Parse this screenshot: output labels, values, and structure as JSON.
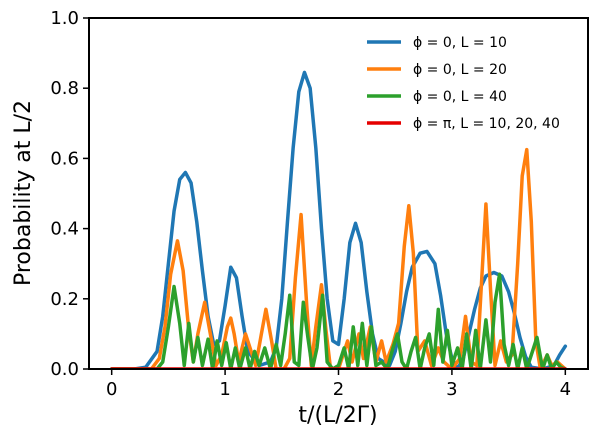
{
  "chart_data": {
    "type": "line",
    "xlabel": "t/(L/2Γ)",
    "ylabel": "Probability at L/2",
    "xlim": [
      -0.2,
      4.2
    ],
    "ylim": [
      0.0,
      1.0
    ],
    "x_ticks": [
      "0",
      "1",
      "2",
      "3",
      "4"
    ],
    "y_ticks": [
      "0.0",
      "0.2",
      "0.4",
      "0.6",
      "0.8",
      "1.0"
    ],
    "legend_position": "top-right",
    "series": [
      {
        "name": "ϕ = 0, L = 10",
        "color": "#1f77b4",
        "points": [
          [
            0,
            0
          ],
          [
            0.2,
            0
          ],
          [
            0.3,
            0.005
          ],
          [
            0.4,
            0.05
          ],
          [
            0.45,
            0.15
          ],
          [
            0.5,
            0.3
          ],
          [
            0.55,
            0.45
          ],
          [
            0.6,
            0.54
          ],
          [
            0.65,
            0.56
          ],
          [
            0.7,
            0.53
          ],
          [
            0.75,
            0.42
          ],
          [
            0.8,
            0.28
          ],
          [
            0.85,
            0.15
          ],
          [
            0.9,
            0.07
          ],
          [
            0.95,
            0.08
          ],
          [
            1.0,
            0.18
          ],
          [
            1.05,
            0.29
          ],
          [
            1.1,
            0.26
          ],
          [
            1.15,
            0.15
          ],
          [
            1.2,
            0.05
          ],
          [
            1.3,
            0.01
          ],
          [
            1.4,
            0.02
          ],
          [
            1.45,
            0.06
          ],
          [
            1.5,
            0.2
          ],
          [
            1.55,
            0.42
          ],
          [
            1.6,
            0.63
          ],
          [
            1.65,
            0.79
          ],
          [
            1.7,
            0.845
          ],
          [
            1.75,
            0.8
          ],
          [
            1.8,
            0.63
          ],
          [
            1.85,
            0.4
          ],
          [
            1.9,
            0.2
          ],
          [
            1.95,
            0.08
          ],
          [
            2.0,
            0.07
          ],
          [
            2.05,
            0.2
          ],
          [
            2.1,
            0.36
          ],
          [
            2.15,
            0.415
          ],
          [
            2.2,
            0.36
          ],
          [
            2.25,
            0.22
          ],
          [
            2.3,
            0.1
          ],
          [
            2.35,
            0.03
          ],
          [
            2.45,
            0.01
          ],
          [
            2.5,
            0.05
          ],
          [
            2.55,
            0.13
          ],
          [
            2.6,
            0.22
          ],
          [
            2.65,
            0.29
          ],
          [
            2.72,
            0.33
          ],
          [
            2.78,
            0.335
          ],
          [
            2.85,
            0.3
          ],
          [
            2.9,
            0.21
          ],
          [
            2.95,
            0.1
          ],
          [
            3.0,
            0.03
          ],
          [
            3.05,
            0.0
          ],
          [
            3.1,
            0.03
          ],
          [
            3.15,
            0.1
          ],
          [
            3.2,
            0.17
          ],
          [
            3.25,
            0.23
          ],
          [
            3.3,
            0.265
          ],
          [
            3.37,
            0.275
          ],
          [
            3.44,
            0.265
          ],
          [
            3.5,
            0.22
          ],
          [
            3.55,
            0.16
          ],
          [
            3.6,
            0.09
          ],
          [
            3.65,
            0.035
          ],
          [
            3.7,
            0.005
          ],
          [
            3.8,
            0.0
          ],
          [
            3.9,
            0.01
          ],
          [
            3.95,
            0.04
          ],
          [
            4.0,
            0.065
          ]
        ]
      },
      {
        "name": "ϕ = 0, L = 20",
        "color": "#ff7f0e",
        "points": [
          [
            0,
            0
          ],
          [
            0.35,
            0
          ],
          [
            0.42,
            0.03
          ],
          [
            0.47,
            0.12
          ],
          [
            0.52,
            0.27
          ],
          [
            0.58,
            0.365
          ],
          [
            0.63,
            0.28
          ],
          [
            0.68,
            0.11
          ],
          [
            0.72,
            0.02
          ],
          [
            0.76,
            0.1
          ],
          [
            0.82,
            0.19
          ],
          [
            0.87,
            0.1
          ],
          [
            0.92,
            0.01
          ],
          [
            0.97,
            0.04
          ],
          [
            1.02,
            0.12
          ],
          [
            1.05,
            0.145
          ],
          [
            1.08,
            0.1
          ],
          [
            1.12,
            0.02
          ],
          [
            1.18,
            0.1
          ],
          [
            1.22,
            0.06
          ],
          [
            1.27,
            0.01
          ],
          [
            1.32,
            0.1
          ],
          [
            1.36,
            0.17
          ],
          [
            1.41,
            0.08
          ],
          [
            1.45,
            0.0
          ],
          [
            1.52,
            0.0
          ],
          [
            1.57,
            0.03
          ],
          [
            1.62,
            0.26
          ],
          [
            1.67,
            0.44
          ],
          [
            1.72,
            0.18
          ],
          [
            1.76,
            0.01
          ],
          [
            1.8,
            0.12
          ],
          [
            1.85,
            0.24
          ],
          [
            1.89,
            0.11
          ],
          [
            1.93,
            0.0
          ],
          [
            2.0,
            0.0
          ],
          [
            2.08,
            0.08
          ],
          [
            2.12,
            0.02
          ],
          [
            2.18,
            0.1
          ],
          [
            2.22,
            0.03
          ],
          [
            2.28,
            0.12
          ],
          [
            2.33,
            0.02
          ],
          [
            2.38,
            0.08
          ],
          [
            2.42,
            0.02
          ],
          [
            2.48,
            0.07
          ],
          [
            2.53,
            0.13
          ],
          [
            2.58,
            0.35
          ],
          [
            2.62,
            0.465
          ],
          [
            2.66,
            0.33
          ],
          [
            2.7,
            0.05
          ],
          [
            2.76,
            0.08
          ],
          [
            2.82,
            0.01
          ],
          [
            2.88,
            0.06
          ],
          [
            2.93,
            0.02
          ],
          [
            3.0,
            0.0
          ],
          [
            3.07,
            0.03
          ],
          [
            3.12,
            0.15
          ],
          [
            3.17,
            0.02
          ],
          [
            3.22,
            0.01
          ],
          [
            3.26,
            0.24
          ],
          [
            3.3,
            0.47
          ],
          [
            3.34,
            0.23
          ],
          [
            3.38,
            0.01
          ],
          [
            3.43,
            0.08
          ],
          [
            3.48,
            0.02
          ],
          [
            3.53,
            0.04
          ],
          [
            3.58,
            0.3
          ],
          [
            3.62,
            0.55
          ],
          [
            3.66,
            0.625
          ],
          [
            3.7,
            0.42
          ],
          [
            3.74,
            0.08
          ],
          [
            3.78,
            0.0
          ],
          [
            3.84,
            0.04
          ],
          [
            3.88,
            0.01
          ],
          [
            3.93,
            0.02
          ],
          [
            4.0,
            0.0
          ]
        ]
      },
      {
        "name": "ϕ = 0, L = 40",
        "color": "#2ca02c",
        "points": [
          [
            0,
            0
          ],
          [
            0.4,
            0
          ],
          [
            0.45,
            0.02
          ],
          [
            0.5,
            0.12
          ],
          [
            0.55,
            0.235
          ],
          [
            0.6,
            0.13
          ],
          [
            0.64,
            0.01
          ],
          [
            0.68,
            0.13
          ],
          [
            0.72,
            0.02
          ],
          [
            0.76,
            0.09
          ],
          [
            0.8,
            0.01
          ],
          [
            0.85,
            0.085
          ],
          [
            0.89,
            0.0
          ],
          [
            0.93,
            0.08
          ],
          [
            0.97,
            0.01
          ],
          [
            1.01,
            0.075
          ],
          [
            1.05,
            0.0
          ],
          [
            1.09,
            0.06
          ],
          [
            1.13,
            0.0
          ],
          [
            1.18,
            0.06
          ],
          [
            1.22,
            0.0
          ],
          [
            1.26,
            0.05
          ],
          [
            1.3,
            0.01
          ],
          [
            1.35,
            0.06
          ],
          [
            1.4,
            0.0
          ],
          [
            1.45,
            0.07
          ],
          [
            1.49,
            0.01
          ],
          [
            1.53,
            0.1
          ],
          [
            1.57,
            0.21
          ],
          [
            1.61,
            0.02
          ],
          [
            1.65,
            0.01
          ],
          [
            1.69,
            0.19
          ],
          [
            1.73,
            0.09
          ],
          [
            1.77,
            0.0
          ],
          [
            1.81,
            0.06
          ],
          [
            1.86,
            0.21
          ],
          [
            1.9,
            0.02
          ],
          [
            1.95,
            0.0
          ],
          [
            2.0,
            0.01
          ],
          [
            2.05,
            0.06
          ],
          [
            2.09,
            0.0
          ],
          [
            2.13,
            0.12
          ],
          [
            2.17,
            0.01
          ],
          [
            2.21,
            0.13
          ],
          [
            2.25,
            0.01
          ],
          [
            2.29,
            0.12
          ],
          [
            2.33,
            0.01
          ],
          [
            2.38,
            0.02
          ],
          [
            2.43,
            0.0
          ],
          [
            2.48,
            0.06
          ],
          [
            2.52,
            0.1
          ],
          [
            2.56,
            0.02
          ],
          [
            2.6,
            0.0
          ],
          [
            2.64,
            0.05
          ],
          [
            2.68,
            0.09
          ],
          [
            2.72,
            0.0
          ],
          [
            2.76,
            0.06
          ],
          [
            2.8,
            0.1
          ],
          [
            2.84,
            0.01
          ],
          [
            2.88,
            0.17
          ],
          [
            2.92,
            0.02
          ],
          [
            2.96,
            0.11
          ],
          [
            3.0,
            0.01
          ],
          [
            3.05,
            0.06
          ],
          [
            3.09,
            0.0
          ],
          [
            3.13,
            0.1
          ],
          [
            3.17,
            0.0
          ],
          [
            3.21,
            0.11
          ],
          [
            3.25,
            0.0
          ],
          [
            3.3,
            0.14
          ],
          [
            3.34,
            0.02
          ],
          [
            3.38,
            0.19
          ],
          [
            3.42,
            0.27
          ],
          [
            3.46,
            0.07
          ],
          [
            3.5,
            0.01
          ],
          [
            3.54,
            0.07
          ],
          [
            3.58,
            0.0
          ],
          [
            3.62,
            0.06
          ],
          [
            3.66,
            0.0
          ],
          [
            3.7,
            0.04
          ],
          [
            3.75,
            0.09
          ],
          [
            3.8,
            0.0
          ],
          [
            3.84,
            0.04
          ],
          [
            3.88,
            0.0
          ],
          [
            3.92,
            0.02
          ],
          [
            3.96,
            0.005
          ],
          [
            4.0,
            0.0
          ]
        ]
      },
      {
        "name": "ϕ = π, L = 10, 20, 40",
        "color": "#e50000",
        "points": [
          [
            0,
            0
          ],
          [
            4.0,
            0
          ]
        ]
      }
    ]
  }
}
